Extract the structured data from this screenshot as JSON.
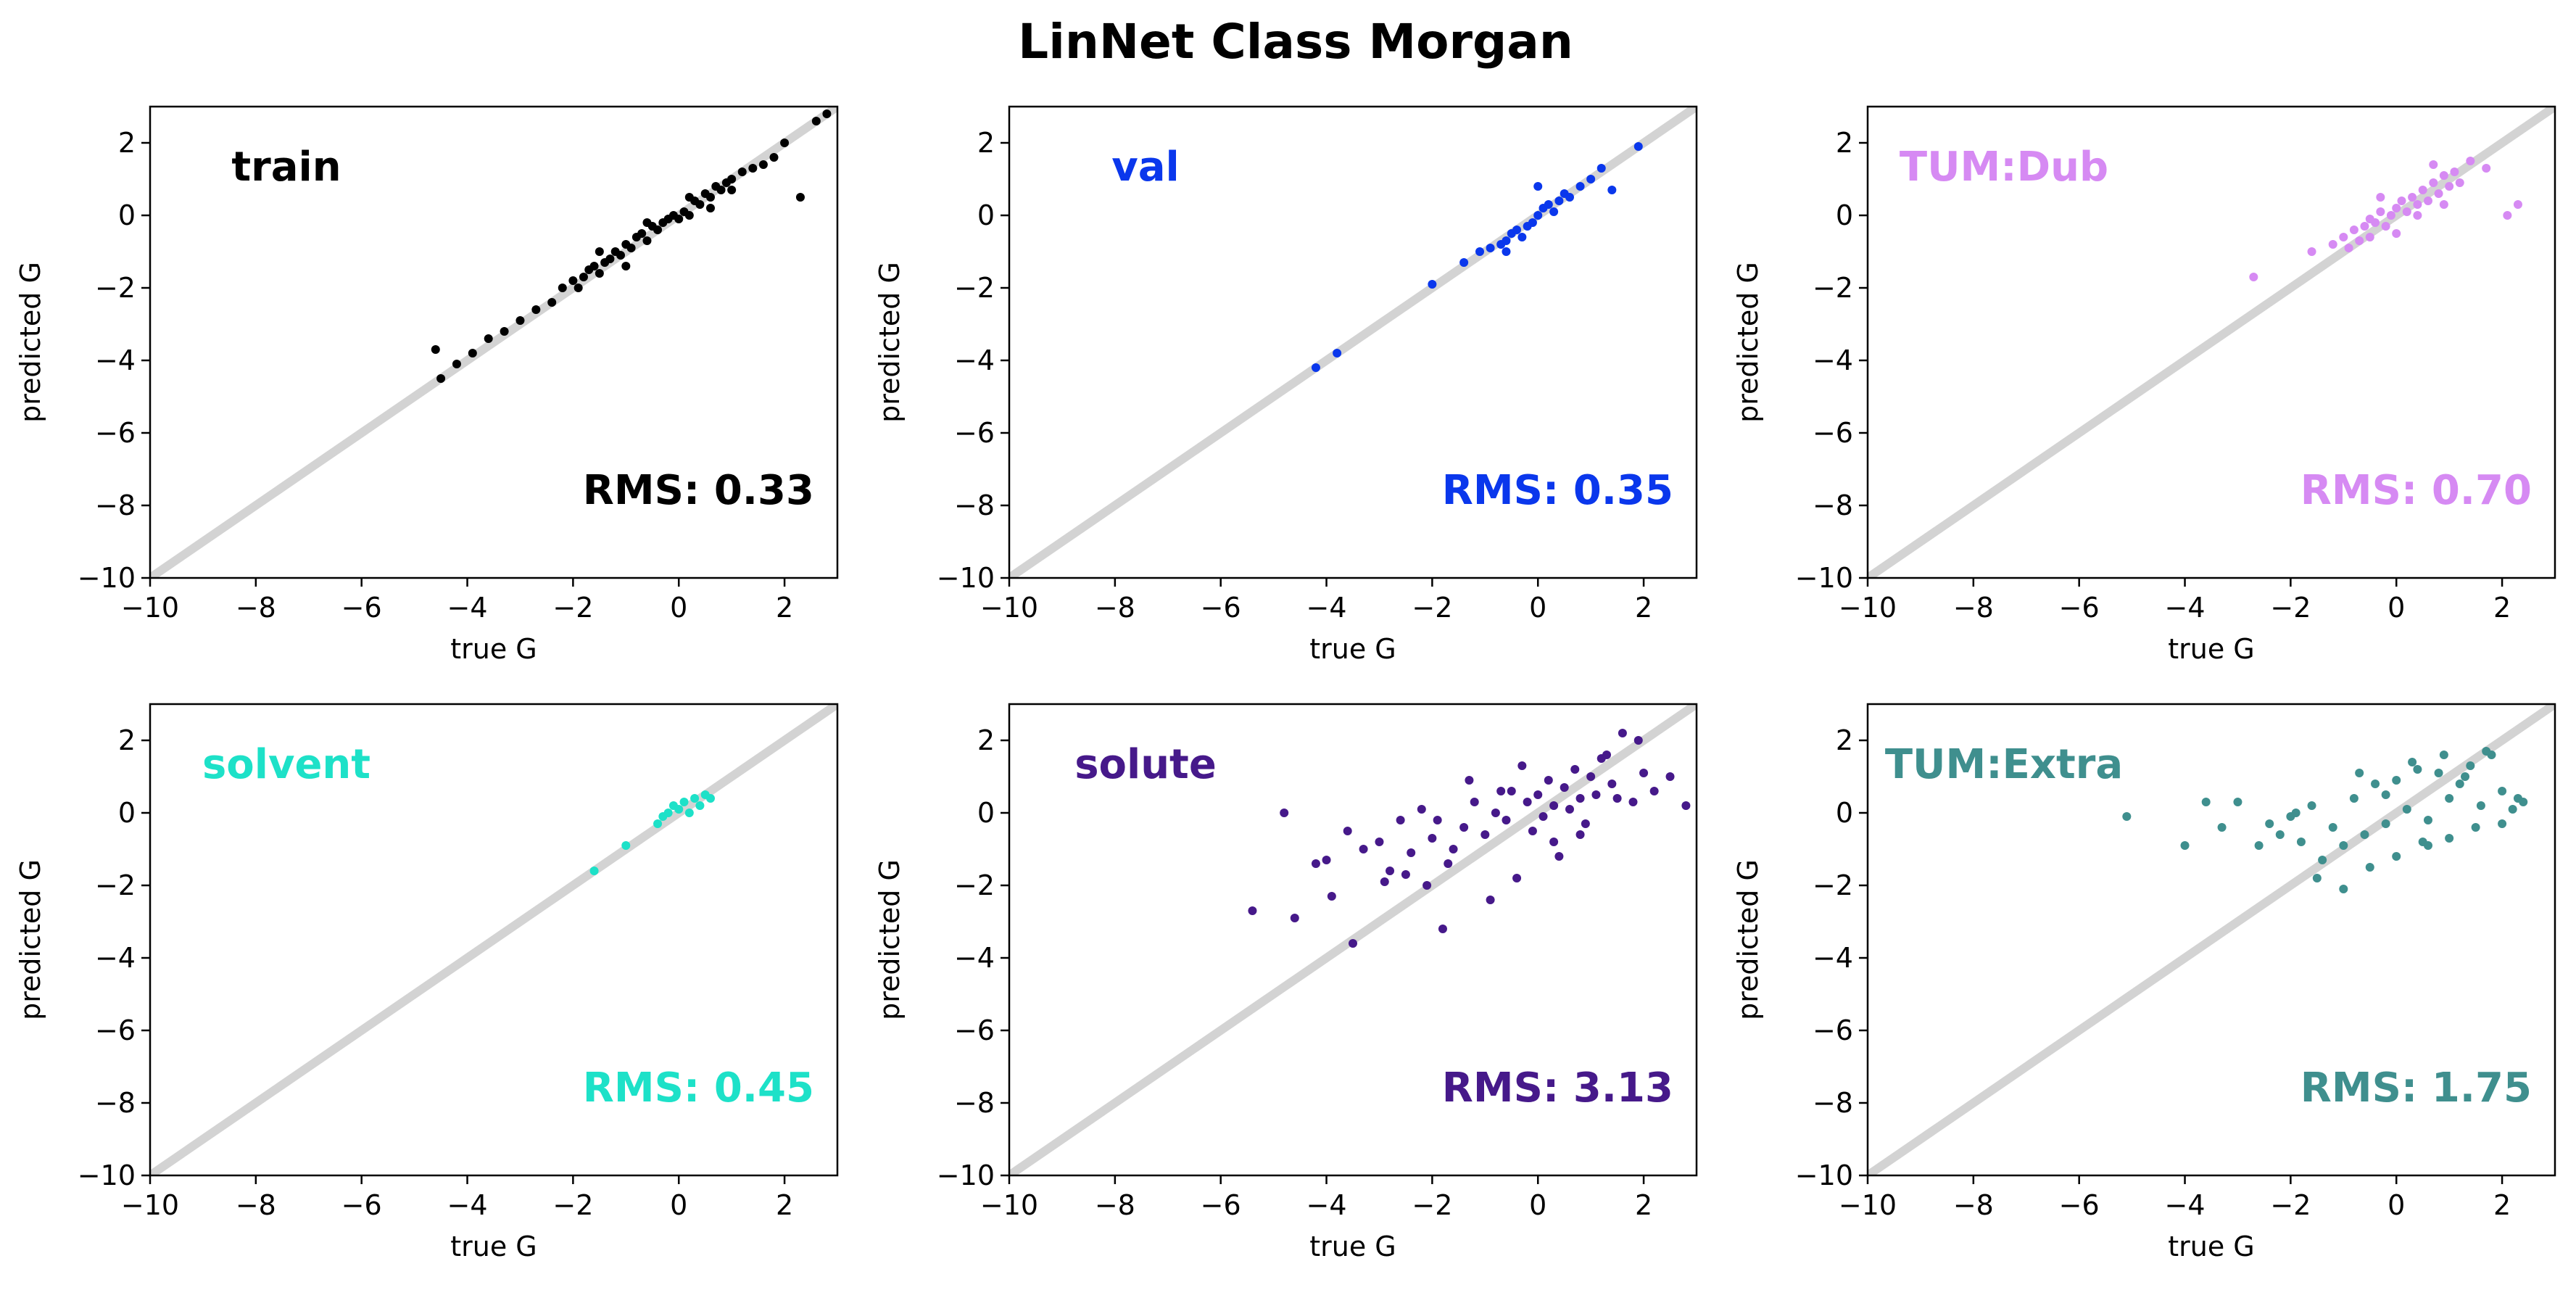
{
  "figure": {
    "title": "LinNet Class Morgan"
  },
  "chart_data": [
    {
      "type": "scatter",
      "label": "train",
      "rms": "RMS: 0.33",
      "color": "#000000",
      "xlabel": "true G",
      "ylabel": "predicted G",
      "xlim": [
        -10,
        3
      ],
      "ylim": [
        -10,
        3
      ],
      "xticks": [
        -10,
        -8,
        -6,
        -4,
        -2,
        0,
        2
      ],
      "yticks": [
        -10,
        -8,
        -6,
        -4,
        -2,
        0,
        2
      ],
      "identity_line": true,
      "series": [
        {
          "x": [
            -4.6,
            -4.5,
            -4.2,
            -3.9,
            -3.6,
            -3.3,
            -3.0,
            -2.7,
            -2.4,
            -2.2,
            -2.0,
            -1.9,
            -1.8,
            -1.7,
            -1.6,
            -1.5,
            -1.4,
            -1.3,
            -1.2,
            -1.1,
            -1.0,
            -0.9,
            -0.8,
            -0.7,
            -0.6,
            -0.5,
            -0.4,
            -0.3,
            -0.2,
            -0.1,
            0.0,
            0.1,
            0.2,
            0.3,
            0.4,
            0.5,
            0.6,
            0.7,
            0.8,
            0.9,
            1.0,
            1.2,
            1.4,
            1.6,
            1.8,
            2.0,
            2.3,
            2.6,
            2.8,
            -1.5,
            -1.0,
            -0.6,
            0.2,
            0.6,
            1.0
          ],
          "y": [
            -3.7,
            -4.5,
            -4.1,
            -3.8,
            -3.4,
            -3.2,
            -2.9,
            -2.6,
            -2.4,
            -2.0,
            -1.8,
            -2.0,
            -1.7,
            -1.5,
            -1.4,
            -1.6,
            -1.3,
            -1.2,
            -1.0,
            -1.1,
            -0.8,
            -0.9,
            -0.6,
            -0.5,
            -0.7,
            -0.3,
            -0.4,
            -0.2,
            -0.1,
            0.0,
            -0.1,
            0.1,
            0.0,
            0.4,
            0.3,
            0.6,
            0.5,
            0.8,
            0.7,
            0.9,
            1.0,
            1.2,
            1.3,
            1.4,
            1.6,
            2.0,
            0.5,
            2.6,
            2.8,
            -1.0,
            -1.4,
            -0.2,
            0.5,
            0.2,
            0.7
          ]
        }
      ]
    },
    {
      "type": "scatter",
      "label": "val",
      "rms": "RMS: 0.35",
      "color": "#0a37ec",
      "xlabel": "true G",
      "ylabel": "predicted G",
      "xlim": [
        -10,
        3
      ],
      "ylim": [
        -10,
        3
      ],
      "xticks": [
        -10,
        -8,
        -6,
        -4,
        -2,
        0,
        2
      ],
      "yticks": [
        -10,
        -8,
        -6,
        -4,
        -2,
        0,
        2
      ],
      "identity_line": true,
      "series": [
        {
          "x": [
            -4.2,
            -3.8,
            -2.0,
            -1.4,
            -1.1,
            -0.9,
            -0.7,
            -0.6,
            -0.5,
            -0.4,
            -0.3,
            -0.2,
            -0.1,
            0.0,
            0.1,
            0.2,
            0.3,
            0.4,
            0.5,
            0.6,
            0.8,
            1.0,
            1.2,
            1.4,
            1.9,
            -0.6,
            0.0
          ],
          "y": [
            -4.2,
            -3.8,
            -1.9,
            -1.3,
            -1.0,
            -0.9,
            -0.8,
            -0.7,
            -0.5,
            -0.4,
            -0.6,
            -0.3,
            -0.2,
            0.0,
            0.2,
            0.3,
            0.1,
            0.4,
            0.6,
            0.5,
            0.8,
            1.0,
            1.3,
            0.7,
            1.9,
            -1.0,
            0.8
          ]
        }
      ]
    },
    {
      "type": "scatter",
      "label": "TUM:Dub",
      "rms": "RMS: 0.70",
      "color": "#d68af3",
      "xlabel": "true G",
      "ylabel": "predicted G",
      "xlim": [
        -10,
        3
      ],
      "ylim": [
        -10,
        3
      ],
      "xticks": [
        -10,
        -8,
        -6,
        -4,
        -2,
        0,
        2
      ],
      "yticks": [
        -10,
        -8,
        -6,
        -4,
        -2,
        0,
        2
      ],
      "identity_line": true,
      "series": [
        {
          "x": [
            -2.7,
            -1.6,
            -1.2,
            -1.0,
            -0.9,
            -0.8,
            -0.7,
            -0.6,
            -0.5,
            -0.4,
            -0.3,
            -0.2,
            -0.1,
            0.0,
            0.1,
            0.2,
            0.3,
            0.4,
            0.5,
            0.6,
            0.7,
            0.8,
            0.9,
            1.0,
            1.1,
            1.2,
            1.4,
            1.7,
            2.1,
            2.3,
            -0.5,
            0.0,
            0.4,
            0.9,
            -0.3,
            0.7
          ],
          "y": [
            -1.7,
            -1.0,
            -0.8,
            -0.6,
            -0.9,
            -0.4,
            -0.7,
            -0.3,
            -0.6,
            -0.2,
            0.1,
            -0.3,
            0.0,
            0.2,
            0.4,
            0.1,
            0.5,
            0.3,
            0.7,
            0.4,
            0.9,
            0.6,
            1.1,
            0.8,
            1.2,
            0.9,
            1.5,
            1.3,
            0.0,
            0.3,
            -0.1,
            -0.5,
            0.0,
            0.3,
            0.5,
            1.4
          ]
        }
      ]
    },
    {
      "type": "scatter",
      "label": "solvent",
      "rms": "RMS: 0.45",
      "color": "#1de1c8",
      "xlabel": "true G",
      "ylabel": "predicted G",
      "xlim": [
        -10,
        3
      ],
      "ylim": [
        -10,
        3
      ],
      "xticks": [
        -10,
        -8,
        -6,
        -4,
        -2,
        0,
        2
      ],
      "yticks": [
        -10,
        -8,
        -6,
        -4,
        -2,
        0,
        2
      ],
      "identity_line": true,
      "series": [
        {
          "x": [
            -1.6,
            -1.0,
            -0.4,
            -0.3,
            -0.2,
            -0.1,
            0.0,
            0.1,
            0.2,
            0.3,
            0.4,
            0.5,
            0.6
          ],
          "y": [
            -1.6,
            -0.9,
            -0.3,
            -0.1,
            0.0,
            0.2,
            0.1,
            0.3,
            0.0,
            0.4,
            0.2,
            0.5,
            0.4
          ]
        }
      ]
    },
    {
      "type": "scatter",
      "label": "solute",
      "rms": "RMS: 3.13",
      "color": "#46198a",
      "xlabel": "true G",
      "ylabel": "predicted G",
      "xlim": [
        -10,
        3
      ],
      "ylim": [
        -10,
        3
      ],
      "xticks": [
        -10,
        -8,
        -6,
        -4,
        -2,
        0,
        2
      ],
      "yticks": [
        -10,
        -8,
        -6,
        -4,
        -2,
        0,
        2
      ],
      "identity_line": true,
      "series": [
        {
          "x": [
            -5.4,
            -4.8,
            -4.6,
            -4.2,
            -3.9,
            -3.6,
            -3.3,
            -3.0,
            -2.8,
            -2.6,
            -2.4,
            -2.2,
            -2.0,
            -1.8,
            -1.7,
            -1.6,
            -1.4,
            -1.2,
            -1.0,
            -0.9,
            -0.8,
            -0.6,
            -0.5,
            -0.4,
            -0.2,
            -0.1,
            0.0,
            0.1,
            0.2,
            0.3,
            0.4,
            0.5,
            0.6,
            0.7,
            0.8,
            0.9,
            1.0,
            1.1,
            1.2,
            1.4,
            1.6,
            1.8,
            2.0,
            2.2,
            2.5,
            2.8,
            -3.5,
            -2.9,
            -2.1,
            -1.3,
            -0.7,
            0.3,
            1.3,
            1.9,
            -4.0,
            -2.5,
            -1.9,
            -0.3,
            0.8,
            1.5
          ],
          "y": [
            -2.7,
            0.0,
            -2.9,
            -1.4,
            -2.3,
            -0.5,
            -1.0,
            -0.8,
            -1.6,
            -0.2,
            -1.1,
            0.1,
            -0.7,
            -3.2,
            -1.4,
            -1.0,
            -0.4,
            0.3,
            -0.6,
            -2.4,
            0.0,
            -0.2,
            0.6,
            -1.8,
            0.3,
            -0.5,
            0.5,
            -0.1,
            0.9,
            0.2,
            -1.2,
            0.7,
            0.1,
            1.2,
            0.4,
            -0.3,
            1.0,
            0.5,
            1.5,
            0.8,
            2.2,
            0.3,
            1.1,
            0.6,
            1.0,
            0.2,
            -3.6,
            -1.9,
            -2.0,
            0.9,
            0.6,
            -0.8,
            1.6,
            2.0,
            -1.3,
            -1.7,
            -0.2,
            1.3,
            -0.6,
            0.4
          ]
        }
      ]
    },
    {
      "type": "scatter",
      "label": "TUM:Extra",
      "rms": "RMS: 1.75",
      "color": "#3f8f8e",
      "xlabel": "true G",
      "ylabel": "predicted G",
      "xlim": [
        -10,
        3
      ],
      "ylim": [
        -10,
        3
      ],
      "xticks": [
        -10,
        -8,
        -6,
        -4,
        -2,
        0,
        2
      ],
      "yticks": [
        -10,
        -8,
        -6,
        -4,
        -2,
        0,
        2
      ],
      "identity_line": true,
      "series": [
        {
          "x": [
            -5.1,
            -4.0,
            -3.6,
            -3.3,
            -3.0,
            -2.6,
            -2.4,
            -2.2,
            -2.0,
            -1.8,
            -1.6,
            -1.4,
            -1.2,
            -1.0,
            -0.8,
            -0.6,
            -0.4,
            -0.2,
            0.0,
            0.2,
            0.4,
            0.6,
            0.8,
            1.0,
            1.2,
            1.4,
            1.6,
            1.8,
            2.0,
            2.2,
            2.4,
            -1.5,
            -1.0,
            -0.5,
            0.0,
            0.5,
            1.0,
            1.5,
            2.0,
            -0.7,
            0.3,
            0.9,
            1.7,
            -1.9,
            -0.2,
            0.6,
            1.3,
            2.3
          ],
          "y": [
            -0.1,
            -0.9,
            0.3,
            -0.4,
            0.3,
            -0.9,
            -0.3,
            -0.6,
            -0.1,
            -0.8,
            0.2,
            -1.3,
            -0.4,
            -0.9,
            0.4,
            -0.6,
            0.8,
            -0.3,
            0.9,
            0.1,
            1.2,
            -0.2,
            1.1,
            0.4,
            0.8,
            1.3,
            0.2,
            1.6,
            0.6,
            0.1,
            0.3,
            -1.8,
            -2.1,
            -1.5,
            -1.2,
            -0.8,
            -0.7,
            -0.4,
            -0.3,
            1.1,
            1.4,
            1.6,
            1.7,
            0.0,
            0.5,
            -0.9,
            1.0,
            0.4
          ]
        }
      ]
    }
  ]
}
